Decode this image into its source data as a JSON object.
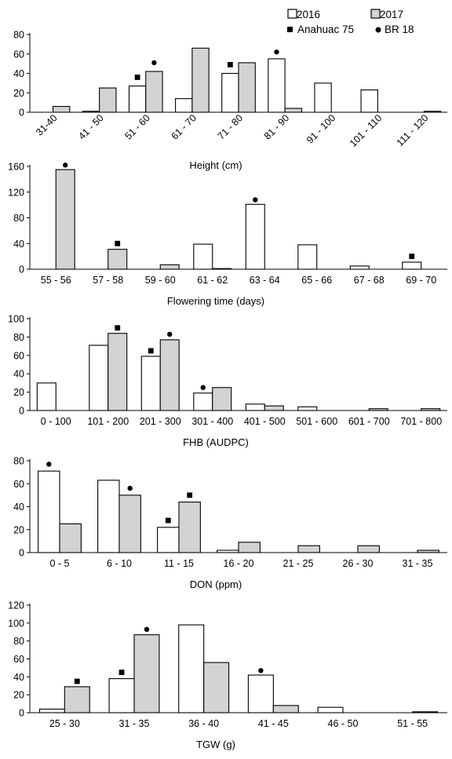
{
  "legend": {
    "items": [
      {
        "label": "2016",
        "kind": "box",
        "fill": "#ffffff"
      },
      {
        "label": "2017",
        "kind": "box",
        "fill": "#d3d3d3"
      },
      {
        "label": "Anahuac 75",
        "kind": "square"
      },
      {
        "label": "BR 18",
        "kind": "dot"
      }
    ]
  },
  "colors": {
    "s2016": "#ffffff",
    "s2017": "#d3d3d3",
    "stroke": "#000000"
  },
  "chart_data": [
    {
      "type": "bar",
      "title": "",
      "xlabel": "Height (cm)",
      "ylabel": "",
      "ylim": [
        0,
        80
      ],
      "yticks": [
        0,
        20,
        40,
        60,
        80
      ],
      "rotated_categories": true,
      "categories": [
        "31-40",
        "41 - 50",
        "51 - 60",
        "61 - 70",
        "71 - 80",
        "81 - 90",
        "91 - 100",
        "101 - 110",
        "111 - 120"
      ],
      "series": [
        {
          "name": "2016",
          "values": [
            0,
            1,
            27,
            14,
            40,
            55,
            30,
            23,
            0
          ]
        },
        {
          "name": "2017",
          "values": [
            6,
            25,
            42,
            66,
            51,
            4,
            0,
            0,
            1
          ]
        }
      ],
      "markers": [
        {
          "name": "Anahuac 75",
          "category": "51 - 60",
          "series": "2016",
          "value": 36
        },
        {
          "name": "BR 18",
          "category": "51 - 60",
          "series": "2017",
          "value": 51
        },
        {
          "name": "Anahuac 75",
          "category": "71 - 80",
          "series": "2016",
          "value": 49
        },
        {
          "name": "BR 18",
          "category": "81 - 90",
          "series": "2016",
          "value": 62
        }
      ]
    },
    {
      "type": "bar",
      "title": "",
      "xlabel": "Flowering time (days)",
      "ylabel": "",
      "ylim": [
        0,
        160
      ],
      "yticks": [
        0,
        40,
        80,
        120,
        160
      ],
      "rotated_categories": false,
      "categories": [
        "55 - 56",
        "57 - 58",
        "59 - 60",
        "61 - 62",
        "63 - 64",
        "65 - 66",
        "67 - 68",
        "69 - 70"
      ],
      "series": [
        {
          "name": "2016",
          "values": [
            0,
            0,
            0,
            39,
            101,
            38,
            5,
            11
          ]
        },
        {
          "name": "2017",
          "values": [
            155,
            31,
            7,
            1,
            0,
            0,
            0,
            0
          ]
        }
      ],
      "markers": [
        {
          "name": "BR 18",
          "category": "55 - 56",
          "series": "2017",
          "value": 162
        },
        {
          "name": "Anahuac 75",
          "category": "57 - 58",
          "series": "2017",
          "value": 40
        },
        {
          "name": "BR 18",
          "category": "63 - 64",
          "series": "2016",
          "value": 108
        },
        {
          "name": "Anahuac 75",
          "category": "69 - 70",
          "series": "2016",
          "value": 20
        }
      ]
    },
    {
      "type": "bar",
      "title": "",
      "xlabel": "FHB (AUDPC)",
      "ylabel": "",
      "ylim": [
        0,
        100
      ],
      "yticks": [
        0,
        20,
        40,
        60,
        80,
        100
      ],
      "rotated_categories": false,
      "categories": [
        "0 - 100",
        "101 - 200",
        "201 - 300",
        "301 - 400",
        "401 - 500",
        "501 - 600",
        "601 - 700",
        "701 - 800"
      ],
      "series": [
        {
          "name": "2016",
          "values": [
            30,
            71,
            59,
            19,
            7,
            4,
            0,
            0
          ]
        },
        {
          "name": "2017",
          "values": [
            0,
            84,
            77,
            25,
            5,
            0,
            2,
            2
          ]
        }
      ],
      "markers": [
        {
          "name": "Anahuac 75",
          "category": "101 - 200",
          "series": "2017",
          "value": 90
        },
        {
          "name": "Anahuac 75",
          "category": "201 - 300",
          "series": "2016",
          "value": 65
        },
        {
          "name": "BR 18",
          "category": "201 - 300",
          "series": "2017",
          "value": 83
        },
        {
          "name": "BR 18",
          "category": "301 - 400",
          "series": "2016",
          "value": 25
        }
      ]
    },
    {
      "type": "bar",
      "title": "",
      "xlabel": "DON (ppm)",
      "ylabel": "",
      "ylim": [
        0,
        80
      ],
      "yticks": [
        0,
        20,
        40,
        60,
        80
      ],
      "rotated_categories": false,
      "categories": [
        "0 - 5",
        "6 - 10",
        "11 - 15",
        "16 - 20",
        "21 - 25",
        "26 - 30",
        "31 - 35"
      ],
      "series": [
        {
          "name": "2016",
          "values": [
            71,
            63,
            22,
            2,
            0,
            0,
            0
          ]
        },
        {
          "name": "2017",
          "values": [
            25,
            50,
            44,
            9,
            6,
            6,
            2
          ]
        }
      ],
      "markers": [
        {
          "name": "BR 18",
          "category": "0 - 5",
          "series": "2016",
          "value": 77
        },
        {
          "name": "BR 18",
          "category": "6 - 10",
          "series": "2017",
          "value": 56
        },
        {
          "name": "Anahuac 75",
          "category": "11 - 15",
          "series": "2016",
          "value": 28
        },
        {
          "name": "Anahuac 75",
          "category": "11 - 15",
          "series": "2017",
          "value": 50
        }
      ]
    },
    {
      "type": "bar",
      "title": "",
      "xlabel": "TGW (g)",
      "ylabel": "",
      "ylim": [
        0,
        120
      ],
      "yticks": [
        0,
        20,
        40,
        60,
        80,
        100,
        120
      ],
      "rotated_categories": false,
      "categories": [
        "25 - 30",
        "31 - 35",
        "36 - 40",
        "41 - 45",
        "46 - 50",
        "51 - 55"
      ],
      "series": [
        {
          "name": "2016",
          "values": [
            4,
            38,
            98,
            42,
            6,
            0
          ]
        },
        {
          "name": "2017",
          "values": [
            29,
            87,
            56,
            8,
            0,
            1
          ]
        }
      ],
      "markers": [
        {
          "name": "Anahuac 75",
          "category": "25 - 30",
          "series": "2017",
          "value": 35
        },
        {
          "name": "Anahuac 75",
          "category": "31 - 35",
          "series": "2016",
          "value": 45
        },
        {
          "name": "BR 18",
          "category": "31 - 35",
          "series": "2017",
          "value": 93
        },
        {
          "name": "BR 18",
          "category": "41 - 45",
          "series": "2016",
          "value": 47
        }
      ]
    }
  ]
}
